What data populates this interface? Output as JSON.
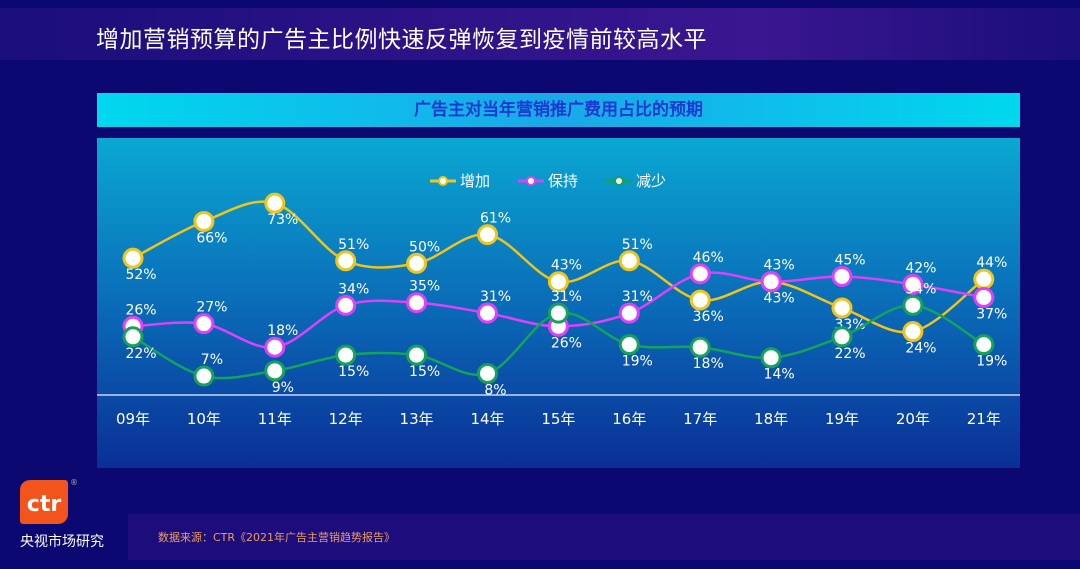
{
  "title": "增加营销预算的广告主比例快速反弹恢复到疫情前较高水平",
  "logo": {
    "text": "ctr",
    "brand": "央视市场研究",
    "reg": "®"
  },
  "footer": {
    "source": "数据来源：CTR《2021年广告主营销趋势报告》"
  },
  "chart_data": {
    "type": "line",
    "title": "广告主对当年营销推广费用占比的预期",
    "categories": [
      "09年",
      "10年",
      "11年",
      "12年",
      "13年",
      "14年",
      "15年",
      "16年",
      "17年",
      "18年",
      "19年",
      "20年",
      "21年"
    ],
    "unit": "%",
    "legend_position": "top-center",
    "series": [
      {
        "name": "增加",
        "color": "#f0c419",
        "values": [
          52,
          66,
          73,
          51,
          50,
          61,
          43,
          51,
          36,
          43,
          33,
          24,
          44
        ]
      },
      {
        "name": "保持",
        "color": "#e040fb",
        "values": [
          26,
          27,
          18,
          34,
          35,
          31,
          26,
          31,
          46,
          43,
          45,
          42,
          37
        ]
      },
      {
        "name": "减少",
        "color": "#13a35a",
        "values": [
          22,
          7,
          9,
          15,
          15,
          8,
          31,
          19,
          18,
          14,
          22,
          34,
          19
        ]
      }
    ]
  }
}
